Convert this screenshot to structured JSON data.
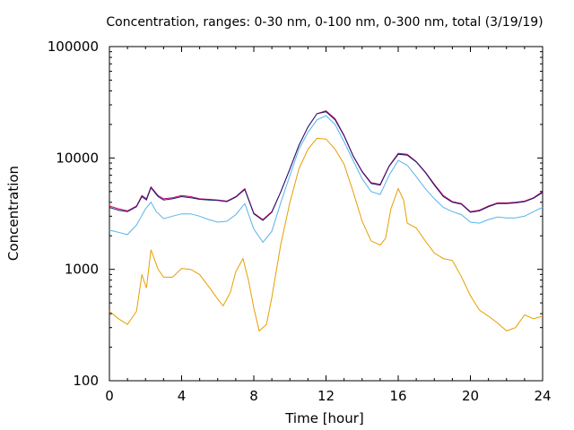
{
  "chart_data": {
    "type": "line",
    "title": "Concentration, ranges: 0-30 nm, 0-100 nm, 0-300 nm, total (3/19/19)",
    "xlabel": "Time [hour]",
    "ylabel": "Concentration",
    "xlim": [
      0,
      24
    ],
    "ylim": [
      100,
      100000
    ],
    "yscale": "log",
    "grid": false,
    "x_ticks": [
      0,
      4,
      8,
      12,
      16,
      20,
      24
    ],
    "y_ticks": [
      100,
      1000,
      10000,
      100000
    ],
    "x_tick_labels": [
      "0",
      "4",
      "8",
      "12",
      "16",
      "20",
      "24"
    ],
    "y_tick_labels": [
      "100",
      "1000",
      "10000",
      "100000"
    ],
    "series": [
      {
        "color": "#e69f00",
        "points": [
          [
            0,
            420
          ],
          [
            0.5,
            360
          ],
          [
            1,
            320
          ],
          [
            1.5,
            420
          ],
          [
            1.8,
            900
          ],
          [
            2.05,
            680
          ],
          [
            2.3,
            1500
          ],
          [
            2.7,
            1000
          ],
          [
            3,
            850
          ],
          [
            3.5,
            850
          ],
          [
            4,
            1020
          ],
          [
            4.5,
            1000
          ],
          [
            5,
            900
          ],
          [
            5.5,
            700
          ],
          [
            6,
            540
          ],
          [
            6.3,
            470
          ],
          [
            6.7,
            620
          ],
          [
            7,
            950
          ],
          [
            7.4,
            1250
          ],
          [
            7.7,
            800
          ],
          [
            8,
            450
          ],
          [
            8.3,
            280
          ],
          [
            8.7,
            320
          ],
          [
            9,
            560
          ],
          [
            9.5,
            1700
          ],
          [
            10,
            4000
          ],
          [
            10.5,
            8000
          ],
          [
            11,
            12000
          ],
          [
            11.5,
            15000
          ],
          [
            12,
            14800
          ],
          [
            12.5,
            12000
          ],
          [
            13,
            8800
          ],
          [
            13.5,
            5000
          ],
          [
            14,
            2700
          ],
          [
            14.5,
            1800
          ],
          [
            15,
            1650
          ],
          [
            15.3,
            1900
          ],
          [
            15.6,
            3500
          ],
          [
            16,
            5300
          ],
          [
            16.3,
            4200
          ],
          [
            16.5,
            2600
          ],
          [
            17,
            2350
          ],
          [
            17.5,
            1800
          ],
          [
            18,
            1400
          ],
          [
            18.5,
            1250
          ],
          [
            19,
            1200
          ],
          [
            19.5,
            860
          ],
          [
            20,
            580
          ],
          [
            20.5,
            430
          ],
          [
            21,
            380
          ],
          [
            21.5,
            330
          ],
          [
            22,
            280
          ],
          [
            22.5,
            300
          ],
          [
            23,
            390
          ],
          [
            23.5,
            360
          ],
          [
            24,
            380
          ]
        ]
      },
      {
        "color": "#56b4e9",
        "points": [
          [
            0,
            2250
          ],
          [
            0.5,
            2150
          ],
          [
            1,
            2050
          ],
          [
            1.5,
            2500
          ],
          [
            2,
            3500
          ],
          [
            2.3,
            4000
          ],
          [
            2.6,
            3300
          ],
          [
            3,
            2850
          ],
          [
            3.5,
            3000
          ],
          [
            4,
            3150
          ],
          [
            4.5,
            3150
          ],
          [
            5,
            3000
          ],
          [
            5.5,
            2800
          ],
          [
            6,
            2650
          ],
          [
            6.5,
            2700
          ],
          [
            7,
            3100
          ],
          [
            7.5,
            3900
          ],
          [
            8,
            2300
          ],
          [
            8.5,
            1750
          ],
          [
            9,
            2200
          ],
          [
            9.5,
            4000
          ],
          [
            10,
            7000
          ],
          [
            10.5,
            12000
          ],
          [
            11,
            17000
          ],
          [
            11.5,
            22000
          ],
          [
            12,
            24000
          ],
          [
            12.5,
            20000
          ],
          [
            13,
            14000
          ],
          [
            13.5,
            9500
          ],
          [
            14,
            6500
          ],
          [
            14.5,
            5000
          ],
          [
            15,
            4700
          ],
          [
            15.5,
            7000
          ],
          [
            16,
            9500
          ],
          [
            16.5,
            8600
          ],
          [
            17,
            6800
          ],
          [
            17.5,
            5300
          ],
          [
            18,
            4300
          ],
          [
            18.5,
            3600
          ],
          [
            19,
            3300
          ],
          [
            19.5,
            3100
          ],
          [
            20,
            2650
          ],
          [
            20.5,
            2600
          ],
          [
            21,
            2800
          ],
          [
            21.5,
            2950
          ],
          [
            22,
            2900
          ],
          [
            22.5,
            2900
          ],
          [
            23,
            3000
          ],
          [
            23.5,
            3300
          ],
          [
            24,
            3600
          ]
        ]
      },
      {
        "color": "#cc0066",
        "points": [
          [
            0,
            3700
          ],
          [
            0.5,
            3500
          ],
          [
            1,
            3350
          ],
          [
            1.5,
            3700
          ],
          [
            1.8,
            4600
          ],
          [
            2.05,
            4300
          ],
          [
            2.3,
            5500
          ],
          [
            2.7,
            4600
          ],
          [
            3,
            4300
          ],
          [
            3.5,
            4400
          ],
          [
            4,
            4600
          ],
          [
            4.5,
            4500
          ],
          [
            5,
            4300
          ],
          [
            5.5,
            4250
          ],
          [
            6,
            4200
          ],
          [
            6.5,
            4100
          ],
          [
            7,
            4500
          ],
          [
            7.5,
            5300
          ],
          [
            8,
            3200
          ],
          [
            8.5,
            2800
          ],
          [
            9,
            3300
          ],
          [
            9.5,
            5000
          ],
          [
            10,
            8000
          ],
          [
            10.5,
            13000
          ],
          [
            11,
            19000
          ],
          [
            11.5,
            25000
          ],
          [
            12,
            26500
          ],
          [
            12.5,
            22500
          ],
          [
            13,
            16000
          ],
          [
            13.5,
            10500
          ],
          [
            14,
            7600
          ],
          [
            14.5,
            6000
          ],
          [
            15,
            5800
          ],
          [
            15.5,
            8500
          ],
          [
            16,
            11000
          ],
          [
            16.5,
            10800
          ],
          [
            17,
            9300
          ],
          [
            17.5,
            7500
          ],
          [
            18,
            5800
          ],
          [
            18.5,
            4600
          ],
          [
            19,
            4050
          ],
          [
            19.5,
            3900
          ],
          [
            20,
            3300
          ],
          [
            20.5,
            3400
          ],
          [
            21,
            3700
          ],
          [
            21.5,
            3950
          ],
          [
            22,
            3950
          ],
          [
            22.5,
            4000
          ],
          [
            23,
            4100
          ],
          [
            23.5,
            4400
          ],
          [
            24,
            5000
          ]
        ]
      },
      {
        "color": "#1a1a70",
        "points": [
          [
            0,
            3600
          ],
          [
            0.5,
            3400
          ],
          [
            1,
            3300
          ],
          [
            1.5,
            3650
          ],
          [
            1.8,
            4500
          ],
          [
            2.05,
            4200
          ],
          [
            2.3,
            5400
          ],
          [
            2.7,
            4500
          ],
          [
            3,
            4200
          ],
          [
            3.5,
            4300
          ],
          [
            4,
            4500
          ],
          [
            4.5,
            4400
          ],
          [
            5,
            4250
          ],
          [
            5.5,
            4200
          ],
          [
            6,
            4150
          ],
          [
            6.5,
            4050
          ],
          [
            7,
            4450
          ],
          [
            7.5,
            5200
          ],
          [
            8,
            3150
          ],
          [
            8.5,
            2750
          ],
          [
            9,
            3250
          ],
          [
            9.5,
            5000
          ],
          [
            10,
            8000
          ],
          [
            10.5,
            13000
          ],
          [
            11,
            19000
          ],
          [
            11.5,
            25000
          ],
          [
            12,
            26000
          ],
          [
            12.5,
            22000
          ],
          [
            13,
            15800
          ],
          [
            13.5,
            10400
          ],
          [
            14,
            7500
          ],
          [
            14.5,
            5900
          ],
          [
            15,
            5700
          ],
          [
            15.5,
            8400
          ],
          [
            16,
            10800
          ],
          [
            16.5,
            10600
          ],
          [
            17,
            9200
          ],
          [
            17.5,
            7400
          ],
          [
            18,
            5700
          ],
          [
            18.5,
            4500
          ],
          [
            19,
            4000
          ],
          [
            19.5,
            3850
          ],
          [
            20,
            3250
          ],
          [
            20.5,
            3350
          ],
          [
            21,
            3650
          ],
          [
            21.5,
            3900
          ],
          [
            22,
            3900
          ],
          [
            22.5,
            3950
          ],
          [
            23,
            4050
          ],
          [
            23.5,
            4350
          ],
          [
            24,
            4900
          ]
        ]
      }
    ]
  }
}
